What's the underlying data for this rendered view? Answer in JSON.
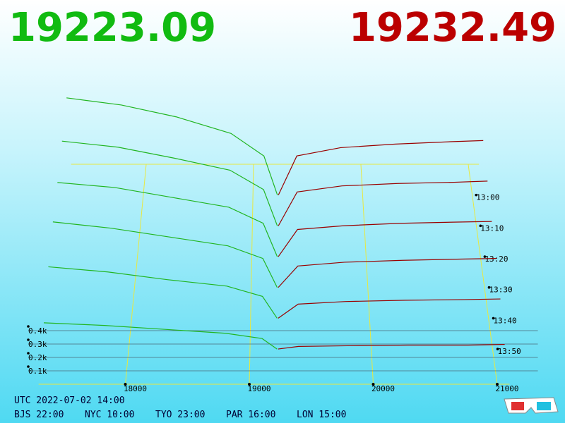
{
  "bid_price": 19223.09,
  "ask_price": 19232.49,
  "chart_data": {
    "type": "depth3d",
    "bid_prices": [
      17300,
      17800,
      18300,
      18800,
      19100,
      19223
    ],
    "ask_prices": [
      19232,
      19400,
      19800,
      20300,
      20800,
      21100
    ],
    "slices": [
      {
        "time": "13:00",
        "bid_depth": [
          820,
          760,
          660,
          520,
          330,
          0
        ],
        "ask_depth": [
          0,
          330,
          400,
          430,
          450,
          460
        ]
      },
      {
        "time": "13:10",
        "bid_depth": [
          700,
          650,
          560,
          460,
          300,
          0
        ],
        "ask_depth": [
          0,
          280,
          330,
          350,
          360,
          370
        ]
      },
      {
        "time": "13:20",
        "bid_depth": [
          600,
          560,
          480,
          400,
          270,
          0
        ],
        "ask_depth": [
          0,
          220,
          250,
          270,
          280,
          285
        ]
      },
      {
        "time": "13:30",
        "bid_depth": [
          520,
          470,
          400,
          330,
          230,
          0
        ],
        "ask_depth": [
          0,
          170,
          200,
          215,
          225,
          230
        ]
      },
      {
        "time": "13:40",
        "bid_depth": [
          400,
          360,
          300,
          250,
          170,
          0
        ],
        "ask_depth": [
          0,
          110,
          130,
          140,
          145,
          150
        ]
      },
      {
        "time": "13:50",
        "bid_depth": [
          200,
          180,
          150,
          120,
          80,
          0
        ],
        "ask_depth": [
          0,
          20,
          25,
          30,
          30,
          35
        ]
      }
    ],
    "xticks": [
      18000,
      19000,
      20000,
      21000
    ],
    "depth_ticks": [
      {
        "value": 400,
        "label": "0.4k"
      },
      {
        "value": 300,
        "label": "0.3k"
      },
      {
        "value": 200,
        "label": "0.2k"
      },
      {
        "value": 100,
        "label": "0.1k"
      }
    ],
    "bid_color": "#22b522",
    "ask_color": "#9a0000"
  },
  "clock": {
    "utc": "UTC 2022-07-02 14:00",
    "zones": [
      "BJS 22:00",
      "NYC 10:00",
      "TYO 23:00",
      "PAR 16:00",
      "LON 15:00"
    ]
  }
}
